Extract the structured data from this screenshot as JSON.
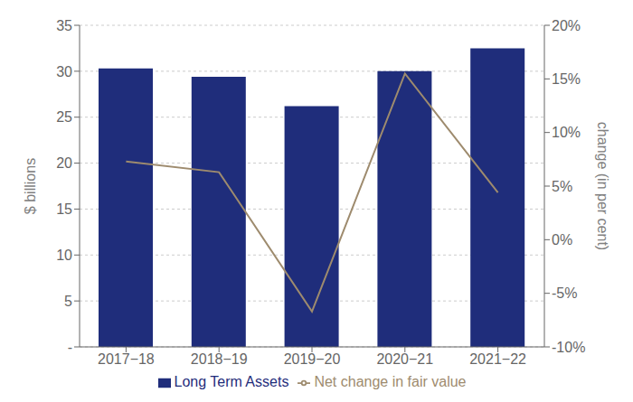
{
  "chart_data": {
    "type": "bar",
    "categories": [
      "2017−18",
      "2018−19",
      "2019−20",
      "2020−21",
      "2021−22"
    ],
    "series": [
      {
        "name": "Long Term Assets",
        "type": "bar",
        "color": "#1f2d7b",
        "values": [
          30.3,
          29.4,
          26.2,
          30.0,
          32.5
        ]
      },
      {
        "name": "Net change in fair value",
        "type": "line",
        "color": "#9e8b6e",
        "axis": "y2",
        "values": [
          0.073,
          0.063,
          -0.067,
          0.155,
          0.044
        ]
      }
    ],
    "ylabel": "$ billions",
    "y2label": "change (in per cent)",
    "ylim": [
      0,
      35
    ],
    "yticks": [
      {
        "value": 0,
        "label": "-"
      },
      5,
      10,
      15,
      20,
      25,
      30,
      35
    ],
    "y2lim": [
      -0.1,
      0.2
    ],
    "y2ticks": [
      {
        "value": -0.1,
        "label": "-10%"
      },
      {
        "value": -0.05,
        "label": "-5%"
      },
      {
        "value": 0.0,
        "label": "0%"
      },
      {
        "value": 0.05,
        "label": "5%"
      },
      {
        "value": 0.1,
        "label": "10%"
      },
      {
        "value": 0.15,
        "label": "15%"
      },
      {
        "value": 0.2,
        "label": "20%"
      }
    ],
    "grid": true,
    "legend": "bottom"
  }
}
